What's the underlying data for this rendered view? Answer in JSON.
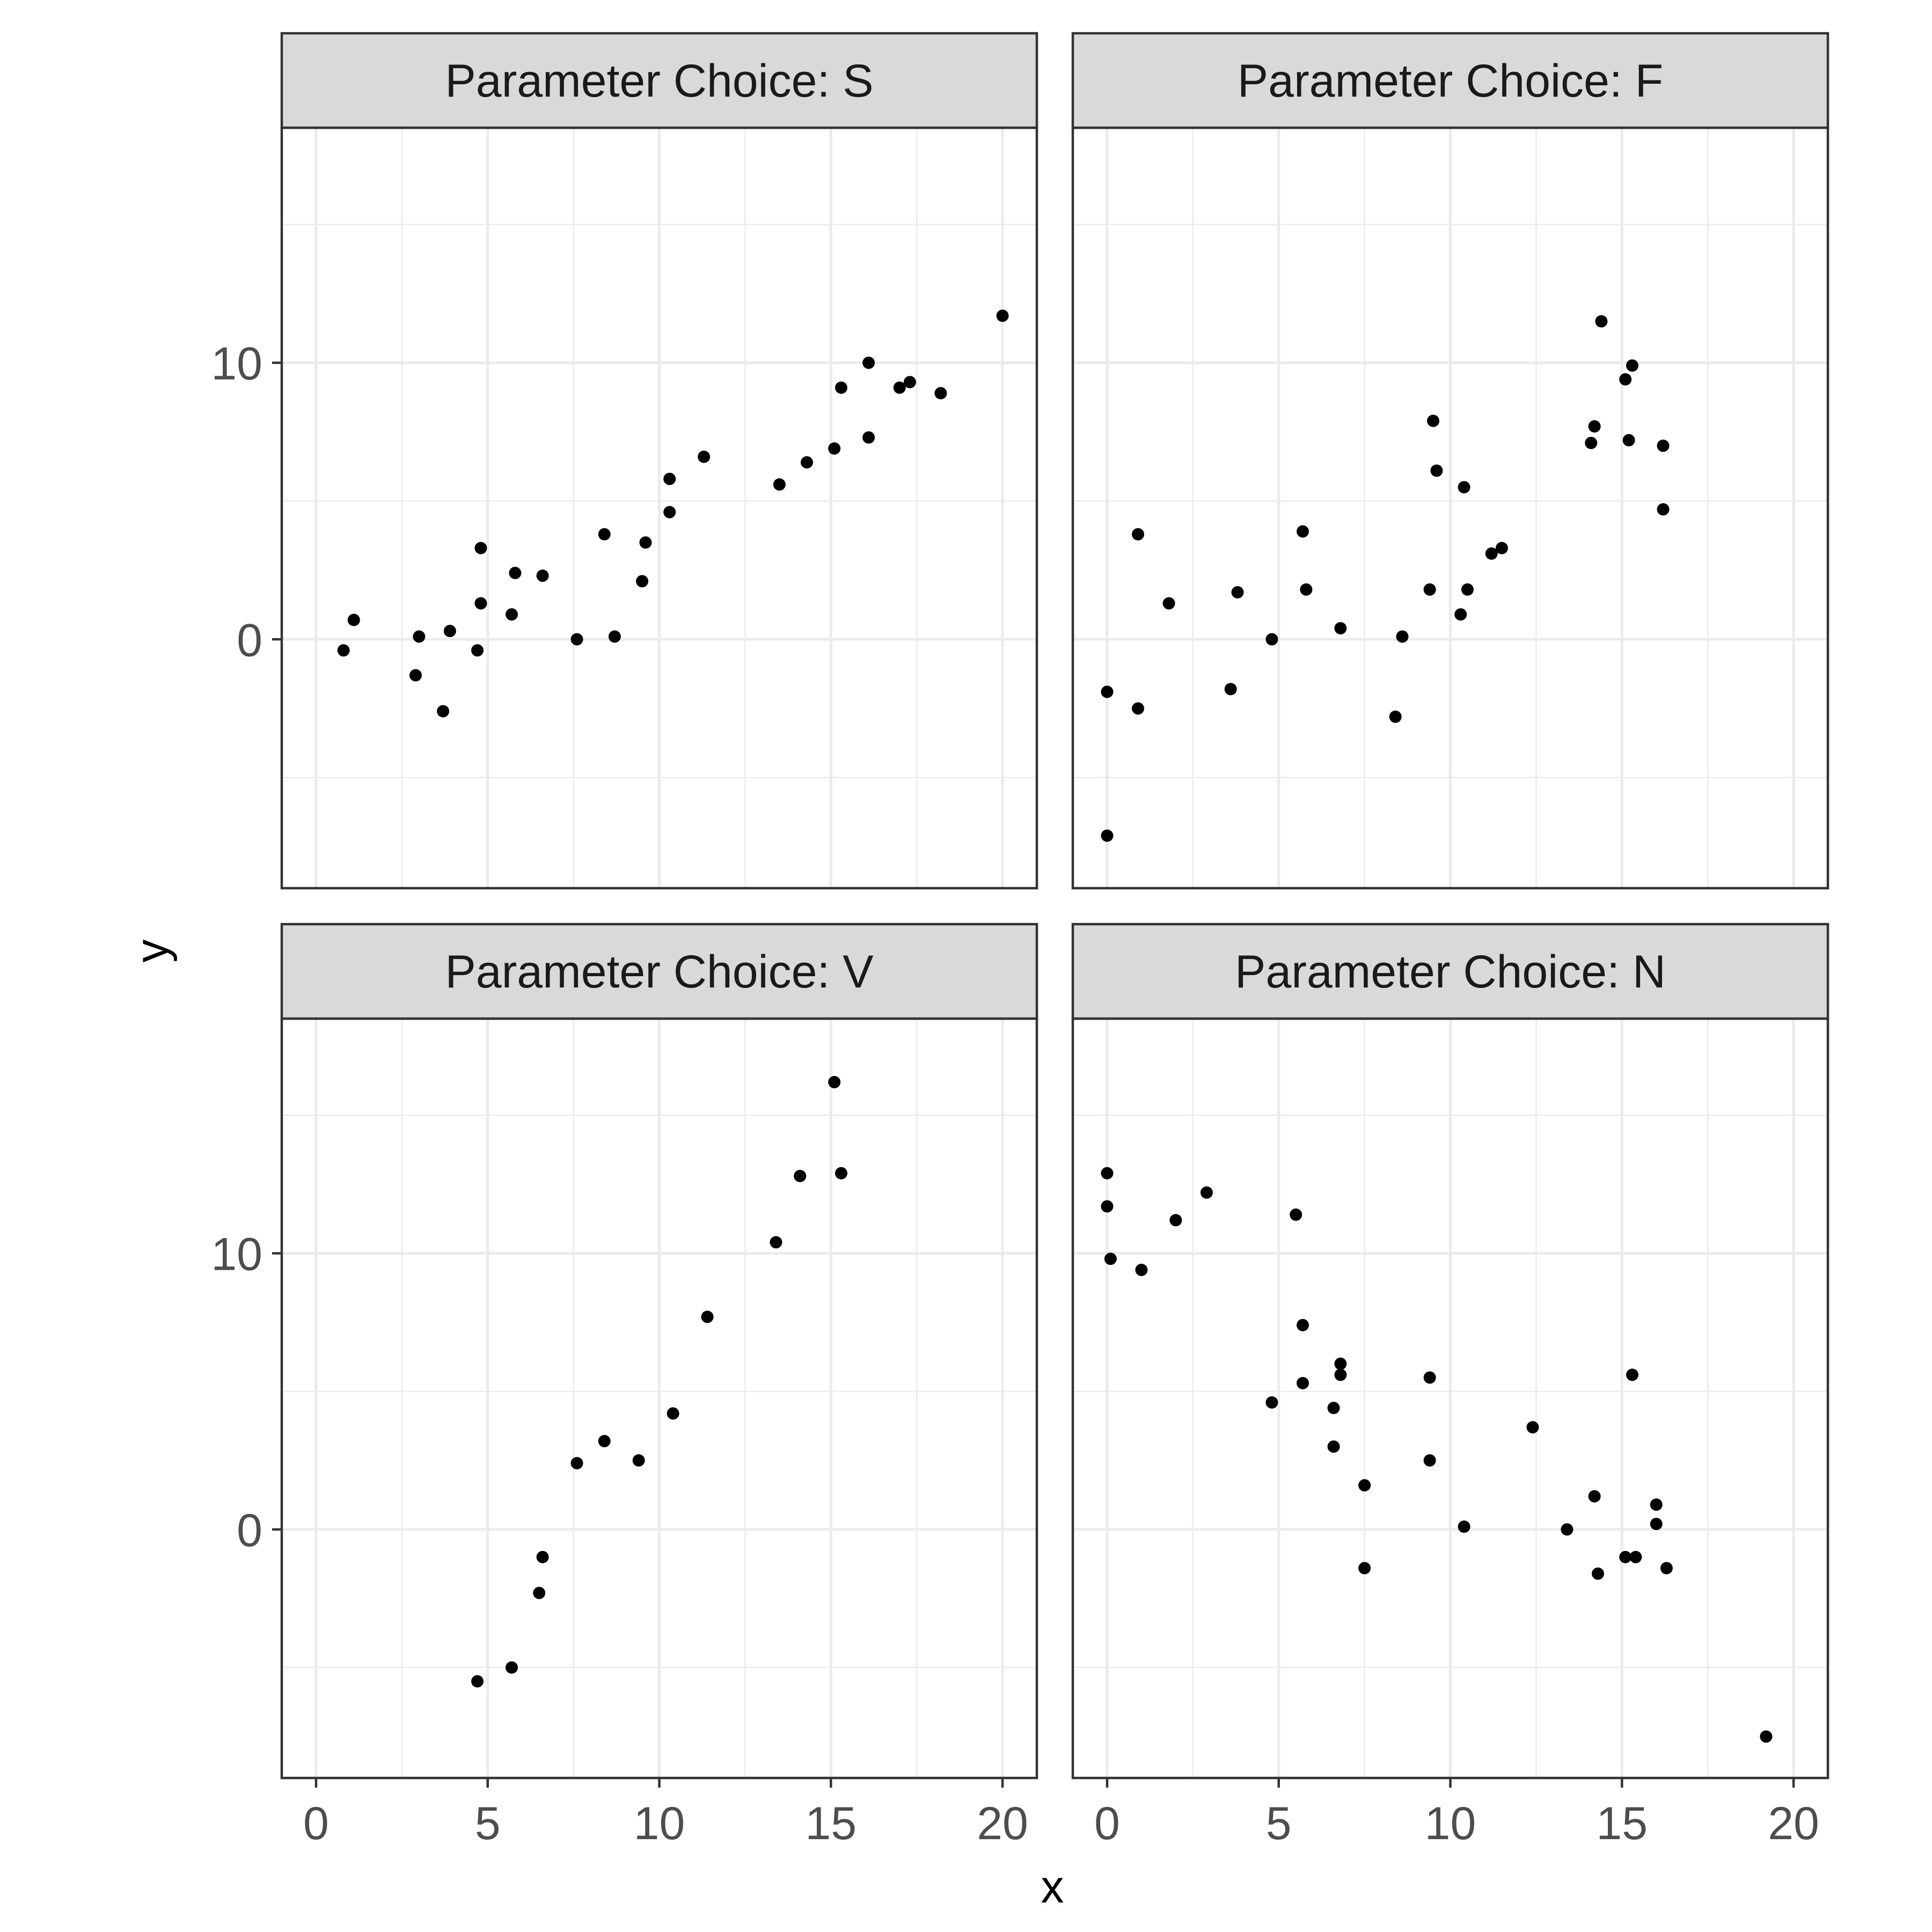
{
  "chart_data": {
    "type": "scatter",
    "layout": "facet-grid 2x2",
    "xlabel": "x",
    "ylabel": "y",
    "xlim": [
      -1,
      21
    ],
    "ylim": [
      -9,
      18.5
    ],
    "x_ticks": [
      0,
      5,
      10,
      15,
      20
    ],
    "y_ticks": [
      0,
      10
    ],
    "x_ticks_labels": [
      "0",
      "5",
      "10",
      "15",
      "20"
    ],
    "y_ticks_labels": [
      "0",
      "10"
    ],
    "grid": true,
    "point_color": "#000000",
    "panels": [
      {
        "title": "Parameter Choice: S",
        "points": [
          [
            0.8,
            -0.4
          ],
          [
            1.1,
            0.7
          ],
          [
            2.9,
            -1.3
          ],
          [
            3.0,
            0.1
          ],
          [
            3.7,
            -2.6
          ],
          [
            3.9,
            0.3
          ],
          [
            4.7,
            -0.4
          ],
          [
            4.8,
            3.3
          ],
          [
            4.8,
            1.3
          ],
          [
            5.7,
            0.9
          ],
          [
            5.8,
            2.4
          ],
          [
            6.6,
            2.3
          ],
          [
            7.6,
            0.0
          ],
          [
            8.4,
            3.8
          ],
          [
            8.7,
            0.1
          ],
          [
            9.5,
            2.1
          ],
          [
            9.6,
            3.5
          ],
          [
            10.3,
            5.8
          ],
          [
            10.3,
            4.6
          ],
          [
            11.3,
            6.6
          ],
          [
            13.5,
            5.6
          ],
          [
            14.3,
            6.4
          ],
          [
            15.1,
            6.9
          ],
          [
            15.3,
            9.1
          ],
          [
            16.1,
            10.0
          ],
          [
            16.1,
            7.3
          ],
          [
            17.0,
            9.1
          ],
          [
            17.3,
            9.3
          ],
          [
            18.2,
            8.9
          ],
          [
            20.0,
            11.7
          ]
        ]
      },
      {
        "title": "Parameter Choice: F",
        "points": [
          [
            0.0,
            -1.9
          ],
          [
            0.0,
            -7.1
          ],
          [
            0.9,
            3.8
          ],
          [
            0.9,
            -2.5
          ],
          [
            1.8,
            1.3
          ],
          [
            3.6,
            -1.8
          ],
          [
            3.8,
            1.7
          ],
          [
            4.8,
            0.0
          ],
          [
            5.7,
            3.9
          ],
          [
            5.8,
            1.8
          ],
          [
            6.8,
            0.4
          ],
          [
            8.4,
            -2.8
          ],
          [
            8.6,
            0.1
          ],
          [
            9.4,
            1.8
          ],
          [
            9.5,
            7.9
          ],
          [
            9.6,
            6.1
          ],
          [
            10.3,
            0.9
          ],
          [
            10.4,
            5.5
          ],
          [
            10.5,
            1.8
          ],
          [
            11.2,
            3.1
          ],
          [
            11.5,
            3.3
          ],
          [
            14.1,
            7.1
          ],
          [
            14.2,
            7.7
          ],
          [
            14.4,
            11.5
          ],
          [
            15.1,
            9.4
          ],
          [
            15.2,
            7.2
          ],
          [
            15.3,
            9.9
          ],
          [
            16.2,
            7.0
          ],
          [
            16.2,
            4.7
          ]
        ]
      },
      {
        "title": "Parameter Choice: V",
        "points": [
          [
            4.7,
            -5.5
          ],
          [
            5.7,
            -5.0
          ],
          [
            6.5,
            -2.3
          ],
          [
            6.6,
            -1.0
          ],
          [
            7.6,
            2.4
          ],
          [
            8.4,
            3.2
          ],
          [
            9.4,
            2.5
          ],
          [
            10.4,
            4.2
          ],
          [
            11.4,
            7.7
          ],
          [
            13.4,
            10.4
          ],
          [
            14.1,
            12.8
          ],
          [
            15.1,
            16.2
          ],
          [
            15.3,
            12.9
          ]
        ]
      },
      {
        "title": "Parameter Choice: N",
        "points": [
          [
            0.0,
            12.9
          ],
          [
            0.0,
            11.7
          ],
          [
            0.1,
            9.8
          ],
          [
            1.0,
            9.4
          ],
          [
            2.0,
            11.2
          ],
          [
            2.9,
            12.2
          ],
          [
            4.8,
            4.6
          ],
          [
            5.5,
            11.4
          ],
          [
            5.7,
            7.4
          ],
          [
            5.7,
            5.3
          ],
          [
            6.6,
            4.4
          ],
          [
            6.6,
            3.0
          ],
          [
            6.8,
            6.0
          ],
          [
            6.8,
            5.6
          ],
          [
            7.5,
            1.6
          ],
          [
            7.5,
            -1.4
          ],
          [
            9.4,
            5.5
          ],
          [
            9.4,
            2.5
          ],
          [
            10.4,
            0.1
          ],
          [
            12.4,
            3.7
          ],
          [
            13.4,
            0.0
          ],
          [
            14.2,
            1.2
          ],
          [
            14.3,
            -1.6
          ],
          [
            15.1,
            -1.0
          ],
          [
            15.3,
            5.6
          ],
          [
            15.4,
            -1.0
          ],
          [
            16.0,
            0.9
          ],
          [
            16.0,
            0.2
          ],
          [
            16.3,
            -1.4
          ],
          [
            19.2,
            -7.5
          ]
        ]
      }
    ]
  }
}
